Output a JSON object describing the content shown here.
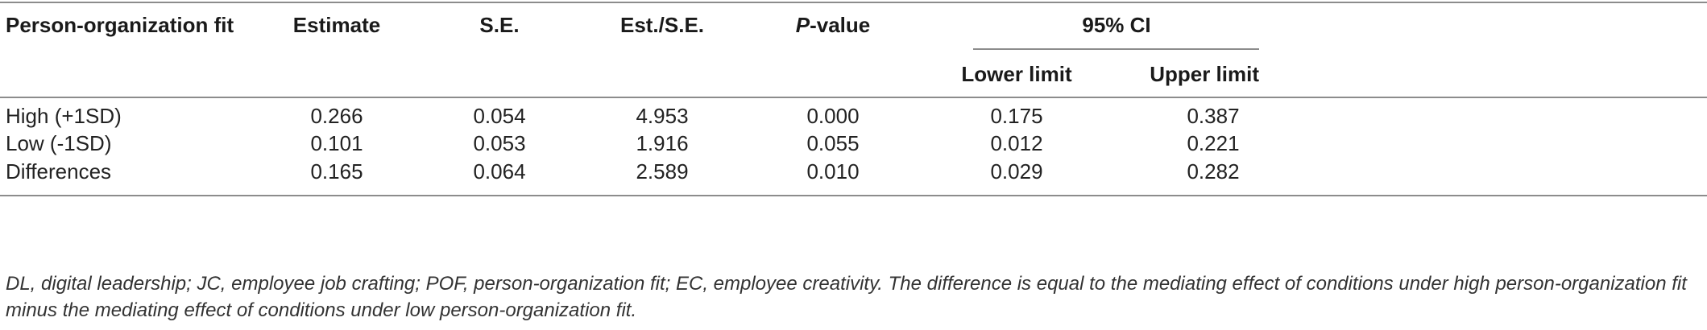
{
  "table": {
    "headers": {
      "col1": "Person-organization fit",
      "col2": "Estimate",
      "col3": "S.E.",
      "col4": "Est./S.E.",
      "col5_italic": "P",
      "col5_rest": "-value",
      "ci_group": "95% CI",
      "ci_lower": "Lower limit",
      "ci_upper": "Upper limit"
    },
    "rows": [
      {
        "label": "High (+1SD)",
        "estimate": "0.266",
        "se": "0.054",
        "est_se": "4.953",
        "p_value": "0.000",
        "lower": "0.175",
        "upper": "0.387"
      },
      {
        "label": "Low (-1SD)",
        "estimate": "0.101",
        "se": "0.053",
        "est_se": "1.916",
        "p_value": "0.055",
        "lower": "0.012",
        "upper": "0.221"
      },
      {
        "label": "Differences",
        "estimate": "0.165",
        "se": "0.064",
        "est_se": "2.589",
        "p_value": "0.010",
        "lower": "0.029",
        "upper": "0.282"
      }
    ],
    "footnote": "DL, digital leadership; JC, employee job crafting; POF, person-organization fit; EC, employee creativity. The difference is equal to the mediating effect of conditions under high person-organization fit minus the mediating effect of conditions under low person-organization fit."
  }
}
